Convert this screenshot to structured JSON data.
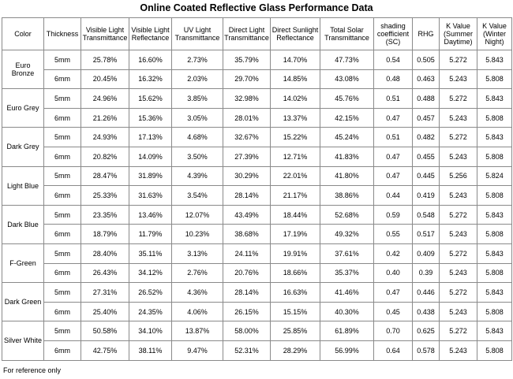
{
  "title": "Online Coated Reflective Glass Performance Data",
  "columns": [
    "Color",
    "Thickness",
    "Visible Light Transmittance",
    "Visible Light Reflectance",
    "UV Light Transmittance",
    "Direct Light Transmittance",
    "Direct Sunlight Reflectance",
    "Total Solar Transmittance",
    "shading coefficient (SC)",
    "RHG",
    "K Value (Summer Daytime)",
    "K Value (Winter Night)"
  ],
  "groups": [
    {
      "color": "Euro Bronze",
      "rows": [
        [
          "5mm",
          "25.78%",
          "16.60%",
          "2.73%",
          "35.79%",
          "14.70%",
          "47.73%",
          "0.54",
          "0.505",
          "5.272",
          "5.843"
        ],
        [
          "6mm",
          "20.45%",
          "16.32%",
          "2.03%",
          "29.70%",
          "14.85%",
          "43.08%",
          "0.48",
          "0.463",
          "5.243",
          "5.808"
        ]
      ]
    },
    {
      "color": "Euro Grey",
      "rows": [
        [
          "5mm",
          "24.96%",
          "15.62%",
          "3.85%",
          "32.98%",
          "14.02%",
          "45.76%",
          "0.51",
          "0.488",
          "5.272",
          "5.843"
        ],
        [
          "6mm",
          "21.26%",
          "15.36%",
          "3.05%",
          "28.01%",
          "13.37%",
          "42.15%",
          "0.47",
          "0.457",
          "5.243",
          "5.808"
        ]
      ]
    },
    {
      "color": "Dark Grey",
      "rows": [
        [
          "5mm",
          "24.93%",
          "17.13%",
          "4.68%",
          "32.67%",
          "15.22%",
          "45.24%",
          "0.51",
          "0.482",
          "5.272",
          "5.843"
        ],
        [
          "6mm",
          "20.82%",
          "14.09%",
          "3.50%",
          "27.39%",
          "12.71%",
          "41.83%",
          "0.47",
          "0.455",
          "5.243",
          "5.808"
        ]
      ]
    },
    {
      "color": "Light Blue",
      "rows": [
        [
          "5mm",
          "28.47%",
          "31.89%",
          "4.39%",
          "30.29%",
          "22.01%",
          "41.80%",
          "0.47",
          "0.445",
          "5.256",
          "5.824"
        ],
        [
          "6mm",
          "25.33%",
          "31.63%",
          "3.54%",
          "28.14%",
          "21.17%",
          "38.86%",
          "0.44",
          "0.419",
          "5.243",
          "5.808"
        ]
      ]
    },
    {
      "color": "Dark Blue",
      "rows": [
        [
          "5mm",
          "23.35%",
          "13.46%",
          "12.07%",
          "43.49%",
          "18.44%",
          "52.68%",
          "0.59",
          "0.548",
          "5.272",
          "5.843"
        ],
        [
          "6mm",
          "18.79%",
          "11.79%",
          "10.23%",
          "38.68%",
          "17.19%",
          "49.32%",
          "0.55",
          "0.517",
          "5.243",
          "5.808"
        ]
      ]
    },
    {
      "color": "F-Green",
      "rows": [
        [
          "5mm",
          "28.40%",
          "35.11%",
          "3.13%",
          "24.11%",
          "19.91%",
          "37.61%",
          "0.42",
          "0.409",
          "5.272",
          "5.843"
        ],
        [
          "6mm",
          "26.43%",
          "34.12%",
          "2.76%",
          "20.76%",
          "18.66%",
          "35.37%",
          "0.40",
          "0.39",
          "5.243",
          "5.808"
        ]
      ]
    },
    {
      "color": "Dark Green",
      "rows": [
        [
          "5mm",
          "27.31%",
          "26.52%",
          "4.36%",
          "28.14%",
          "16.63%",
          "41.46%",
          "0.47",
          "0.446",
          "5.272",
          "5.843"
        ],
        [
          "6mm",
          "25.40%",
          "24.35%",
          "4.06%",
          "26.15%",
          "15.15%",
          "40.30%",
          "0.45",
          "0.438",
          "5.243",
          "5.808"
        ]
      ]
    },
    {
      "color": "Silver White",
      "rows": [
        [
          "5mm",
          "50.58%",
          "34.10%",
          "13.87%",
          "58.00%",
          "25.85%",
          "61.89%",
          "0.70",
          "0.625",
          "5.272",
          "5.843"
        ],
        [
          "6mm",
          "42.75%",
          "38.11%",
          "9.47%",
          "52.31%",
          "28.29%",
          "56.99%",
          "0.64",
          "0.578",
          "5.243",
          "5.808"
        ]
      ]
    }
  ],
  "footnote": "For reference only"
}
